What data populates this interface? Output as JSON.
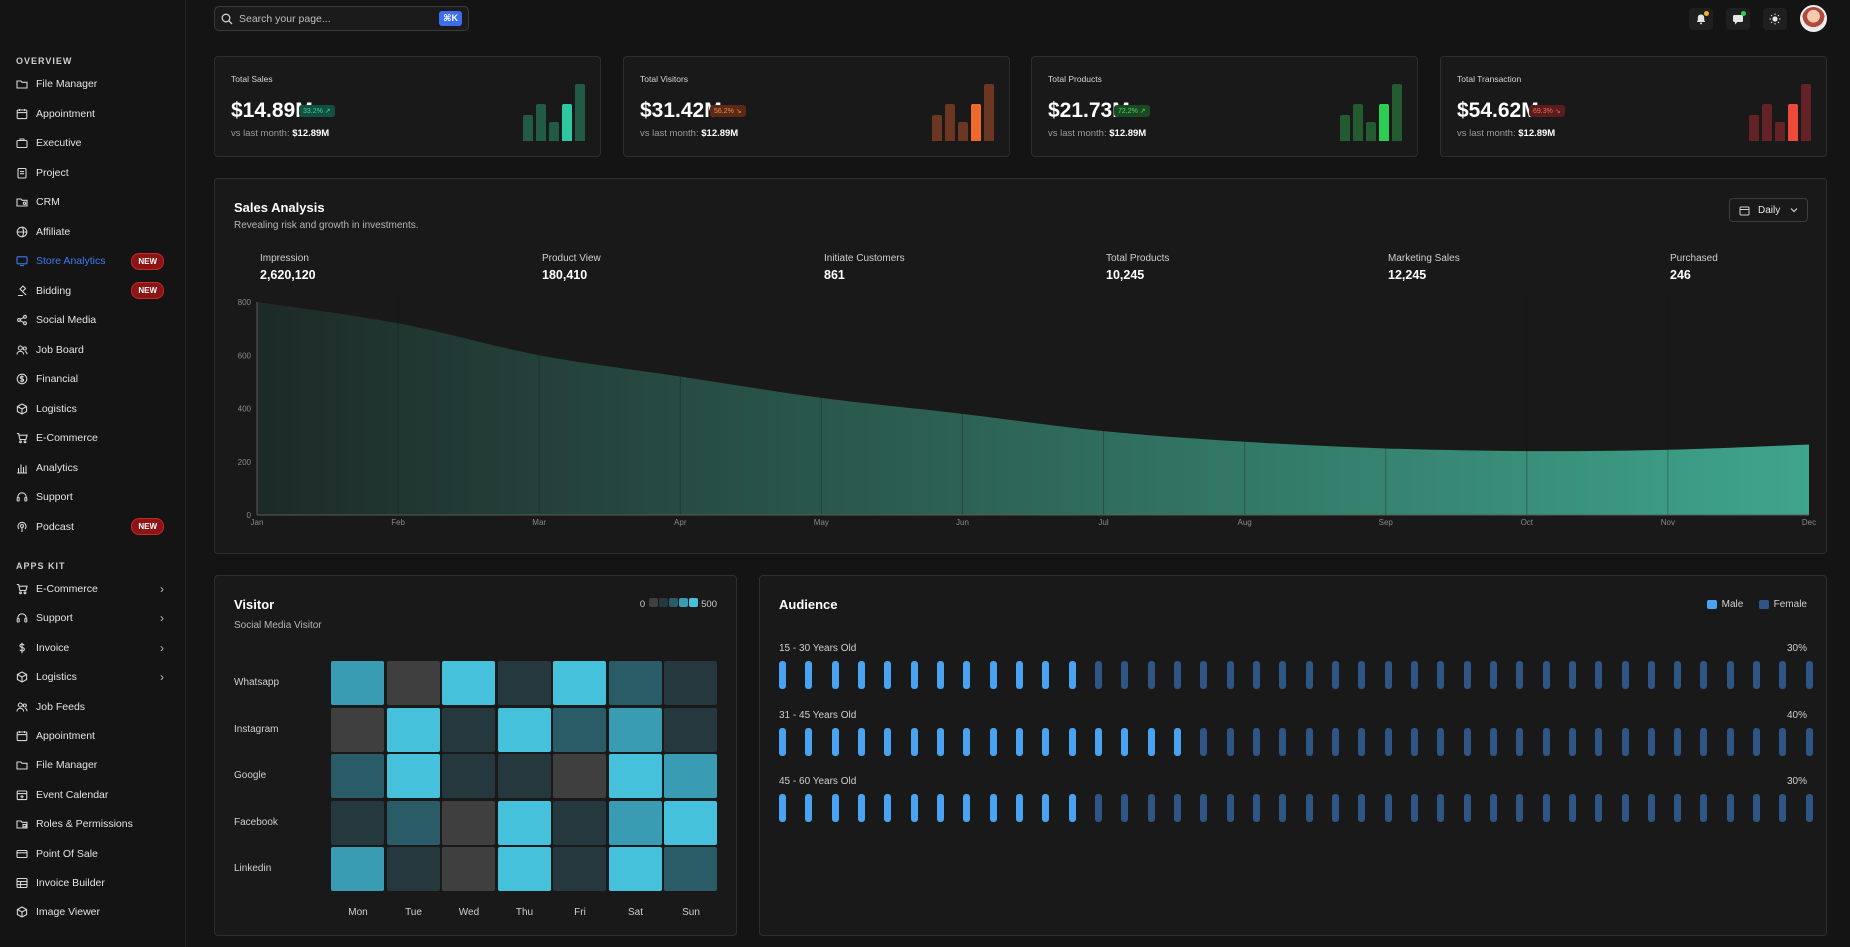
{
  "colors": {
    "accent": "#3d7bf4",
    "teal": "#3fa58c",
    "heat_levels": [
      "#3f3f3f",
      "#24383d",
      "#2a5c68",
      "#3a9cb3",
      "#46c1dc"
    ],
    "male": "#4aa3f0",
    "female": "#2f5584"
  },
  "search": {
    "placeholder": "Search your page...",
    "shortcut": "⌘K"
  },
  "sidebar": {
    "overview_title": "OVERVIEW",
    "overview_items": [
      {
        "label": "File Manager",
        "icon": "folder-icon"
      },
      {
        "label": "Appointment",
        "icon": "calendar-icon"
      },
      {
        "label": "Executive",
        "icon": "briefcase-icon"
      },
      {
        "label": "Project",
        "icon": "clipboard-icon"
      },
      {
        "label": "CRM",
        "icon": "folder-user-icon"
      },
      {
        "label": "Affiliate",
        "icon": "globe-icon"
      },
      {
        "label": "Store Analytics",
        "icon": "monitor-icon",
        "badge": "NEW"
      },
      {
        "label": "Bidding",
        "icon": "gavel-icon",
        "badge": "NEW"
      },
      {
        "label": "Social Media",
        "icon": "share-icon"
      },
      {
        "label": "Job Board",
        "icon": "users-icon"
      },
      {
        "label": "Financial",
        "icon": "coin-icon"
      },
      {
        "label": "Logistics",
        "icon": "box-icon"
      },
      {
        "label": "E-Commerce",
        "icon": "cart-icon"
      },
      {
        "label": "Analytics",
        "icon": "bar-chart-icon"
      },
      {
        "label": "Support",
        "icon": "headset-icon"
      },
      {
        "label": "Podcast",
        "icon": "podcast-icon",
        "badge": "NEW"
      }
    ],
    "apps_title": "APPS KIT",
    "apps_items": [
      {
        "label": "E-Commerce",
        "icon": "cart-icon"
      },
      {
        "label": "Support",
        "icon": "headset-icon"
      },
      {
        "label": "Invoice",
        "icon": "dollar-icon"
      },
      {
        "label": "Logistics",
        "icon": "box-icon"
      },
      {
        "label": "Job Feeds",
        "icon": "users-icon"
      },
      {
        "label": "Appointment",
        "icon": "calendar-icon"
      },
      {
        "label": "File Manager",
        "icon": "folder-icon"
      },
      {
        "label": "Event Calendar",
        "icon": "calendar-plus-icon"
      },
      {
        "label": "Roles & Permissions",
        "icon": "folder-lock-icon"
      },
      {
        "label": "Point Of Sale",
        "icon": "card-icon"
      },
      {
        "label": "Invoice Builder",
        "icon": "table-icon"
      },
      {
        "label": "Image Viewer",
        "icon": "box-icon"
      }
    ]
  },
  "stats": [
    {
      "title": "Total Sales",
      "value": "$14.89M",
      "pct": "33.2% ↗",
      "sub_label": "vs last month:",
      "sub_value": "$12.89M",
      "trend": "up",
      "bars": [
        0.45,
        0.63,
        0.33,
        0.63,
        0.98
      ],
      "bar_dim": "#215a45",
      "bar_hi": "#2fc7a0",
      "pct_bg": "#14503f",
      "pct_fg": "#39d3a5"
    },
    {
      "title": "Total Visitors",
      "value": "$31.42M",
      "pct": "56.2% ↘",
      "sub_label": "vs last month:",
      "sub_value": "$12.89M",
      "trend": "down",
      "bars": [
        0.45,
        0.63,
        0.33,
        0.63,
        0.98
      ],
      "bar_dim": "#6b3722",
      "bar_hi": "#f0692c",
      "pct_bg": "#5a2a14",
      "pct_fg": "#f08a5a"
    },
    {
      "title": "Total Products",
      "value": "$21.73M",
      "pct": "72.2% ↗",
      "sub_label": "vs last month:",
      "sub_value": "$12.89M",
      "trend": "up",
      "bars": [
        0.45,
        0.63,
        0.33,
        0.63,
        0.98
      ],
      "bar_dim": "#245a30",
      "bar_hi": "#2dcc54",
      "pct_bg": "#1b4a22",
      "pct_fg": "#45d867"
    },
    {
      "title": "Total Transaction",
      "value": "$54.62M",
      "pct": "69.3% ↘",
      "sub_label": "vs last month:",
      "sub_value": "$12.89M",
      "trend": "down",
      "bars": [
        0.45,
        0.63,
        0.33,
        0.63,
        0.98
      ],
      "bar_dim": "#632226",
      "bar_hi": "#ee4a3c",
      "pct_bg": "#5a1c1c",
      "pct_fg": "#f06a5a"
    }
  ],
  "sales": {
    "title": "Sales Analysis",
    "subtitle": "Revealing risk and growth in investments.",
    "period": "Daily",
    "metrics": [
      {
        "label": "Impression",
        "value": "2,620,120"
      },
      {
        "label": "Product View",
        "value": "180,410"
      },
      {
        "label": "Initiate Customers",
        "value": "861"
      },
      {
        "label": "Total Products",
        "value": "10,245"
      },
      {
        "label": "Marketing Sales",
        "value": "12,245"
      },
      {
        "label": "Purchased",
        "value": "246"
      }
    ]
  },
  "chart_data": {
    "type": "area",
    "title": "Sales Analysis",
    "categories": [
      "Jan",
      "Feb",
      "Mar",
      "Apr",
      "May",
      "Jun",
      "Jul",
      "Aug",
      "Sep",
      "Oct",
      "Nov",
      "Dec"
    ],
    "values": [
      800,
      720,
      600,
      520,
      440,
      380,
      315,
      275,
      250,
      240,
      245,
      265
    ],
    "yticks": [
      0,
      200,
      400,
      600,
      800
    ],
    "ylim": [
      0,
      800
    ],
    "xlabel": "",
    "ylabel": ""
  },
  "visitor": {
    "title": "Visitor",
    "subtitle": "Social Media Visitor",
    "legend_min": "0",
    "legend_max": "500",
    "rows": [
      "Whatsapp",
      "Instagram",
      "Google",
      "Facebook",
      "Linkedin"
    ],
    "days": [
      "Mon",
      "Tue",
      "Wed",
      "Thu",
      "Fri",
      "Sat",
      "Sun"
    ],
    "levels": [
      [
        3,
        0,
        4,
        1,
        4,
        2,
        1
      ],
      [
        0,
        4,
        1,
        4,
        2,
        3,
        1
      ],
      [
        2,
        4,
        1,
        1,
        0,
        4,
        3
      ],
      [
        1,
        2,
        0,
        4,
        1,
        3,
        4
      ],
      [
        3,
        1,
        0,
        4,
        1,
        4,
        2
      ]
    ]
  },
  "audience": {
    "title": "Audience",
    "legend_male": "Male",
    "legend_female": "Female",
    "total_bars": 40,
    "groups": [
      {
        "label": "15 - 30 Years Old",
        "pct": "30%",
        "male_bars": 12
      },
      {
        "label": "31 - 45 Years Old",
        "pct": "40%",
        "male_bars": 16
      },
      {
        "label": "45 - 60 Years Old",
        "pct": "30%",
        "male_bars": 12
      }
    ]
  }
}
